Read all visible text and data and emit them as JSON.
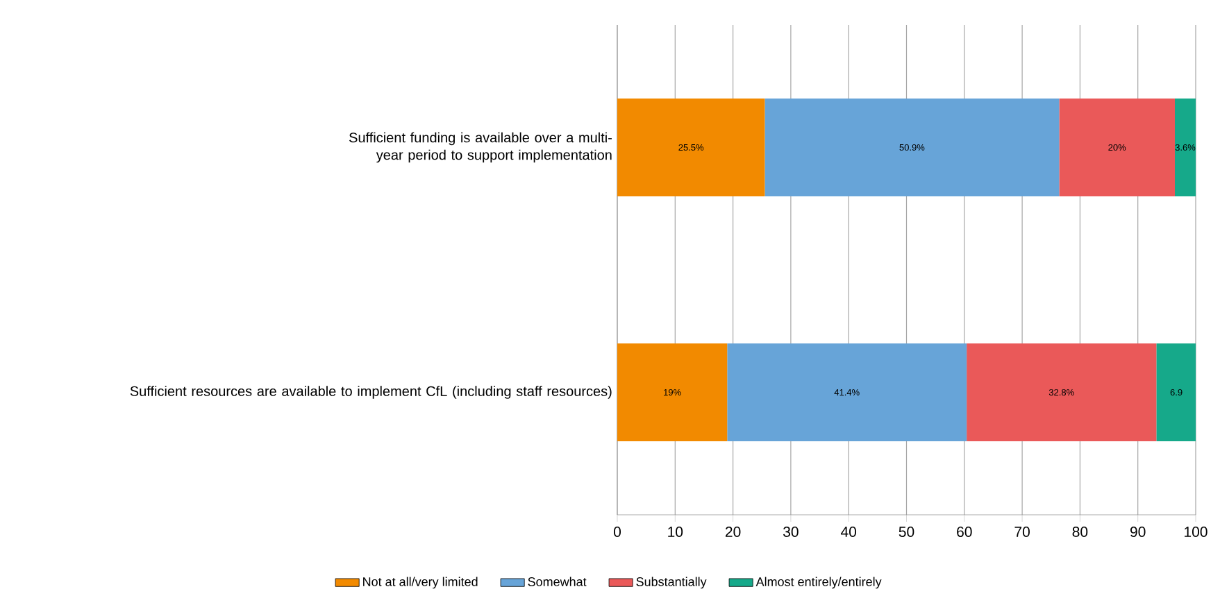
{
  "chart_data": {
    "type": "bar",
    "orientation": "horizontal",
    "stacked": true,
    "categories": [
      "Sufficient funding is available over a multi-year period to support implementation",
      "Sufficient resources are available to implement CfL (including staff resources)"
    ],
    "series": [
      {
        "name": "Not at all/very limited",
        "color": "#f28a00",
        "values": [
          25.5,
          19
        ],
        "value_labels": [
          "25.5%",
          "19%"
        ]
      },
      {
        "name": "Somewhat",
        "color": "#67a4d8",
        "values": [
          50.9,
          41.4
        ],
        "value_labels": [
          "50.9%",
          "41.4%"
        ]
      },
      {
        "name": "Substantially",
        "color": "#ea5959",
        "values": [
          20,
          32.8
        ],
        "value_labels": [
          "20%",
          "32.8%"
        ]
      },
      {
        "name": "Almost entirely/entirely",
        "color": "#16a98a",
        "values": [
          3.6,
          6.9
        ],
        "value_labels": [
          "3.6%",
          "6.9"
        ]
      }
    ],
    "xlim": [
      0,
      100
    ],
    "xticks": [
      0,
      10,
      20,
      30,
      40,
      50,
      60,
      70,
      80,
      90,
      100
    ],
    "grid": "x",
    "legend": "bottom"
  }
}
